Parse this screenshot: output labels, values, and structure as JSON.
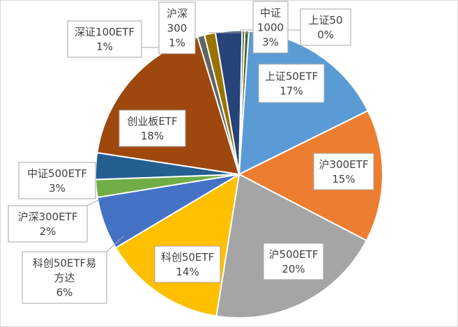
{
  "chart_data": {
    "type": "pie",
    "title": "",
    "legend": "none",
    "slices": [
      {
        "label": "上证50",
        "label_lines": [
          "上证50"
        ],
        "pct_text": "0%",
        "value": 0.45,
        "color": "#4f6228"
      },
      {
        "label": "上证50ETF",
        "label_lines": [
          "上证50ETF"
        ],
        "pct_text": "17%",
        "value": 16.7,
        "color": "#5b9bd5"
      },
      {
        "label": "沪300ETF",
        "label_lines": [
          "沪300ETF"
        ],
        "pct_text": "15%",
        "value": 15.0,
        "color": "#ed7d31"
      },
      {
        "label": "沪500ETF",
        "label_lines": [
          "沪500ETF"
        ],
        "pct_text": "20%",
        "value": 20.0,
        "color": "#a5a5a5"
      },
      {
        "label": "科创50ETF",
        "label_lines": [
          "科创50ETF"
        ],
        "pct_text": "14%",
        "value": 14.0,
        "color": "#ffc000"
      },
      {
        "label": "科创50ETF易方达",
        "label_lines": [
          "科创50ETF易",
          "方达"
        ],
        "pct_text": "6%",
        "value": 6.0,
        "color": "#4472c4"
      },
      {
        "label": "沪深300ETF",
        "label_lines": [
          "沪深300ETF"
        ],
        "pct_text": "2%",
        "value": 2.0,
        "color": "#70ad47"
      },
      {
        "label": "中证500ETF",
        "label_lines": [
          "中证500ETF"
        ],
        "pct_text": "3%",
        "value": 3.0,
        "color": "#255e91"
      },
      {
        "label": "创业板ETF",
        "label_lines": [
          "创业板ETF"
        ],
        "pct_text": "18%",
        "value": 18.0,
        "color": "#9e480e"
      },
      {
        "label": "深证100ETF",
        "label_lines": [
          "深证100ETF"
        ],
        "pct_text": "1%",
        "value": 0.8,
        "color": "#636363"
      },
      {
        "label": "沪深300",
        "label_lines": [
          "沪深",
          "300"
        ],
        "pct_text": "1%",
        "value": 1.25,
        "color": "#997300"
      },
      {
        "label": "中证1000",
        "label_lines": [
          "中证",
          "1000"
        ],
        "pct_text": "3%",
        "value": 3.0,
        "color": "#264478"
      },
      {
        "label": "(unlabeled)",
        "label_lines": [],
        "pct_text": "",
        "value": 0.3,
        "color": "#43682b"
      }
    ]
  }
}
